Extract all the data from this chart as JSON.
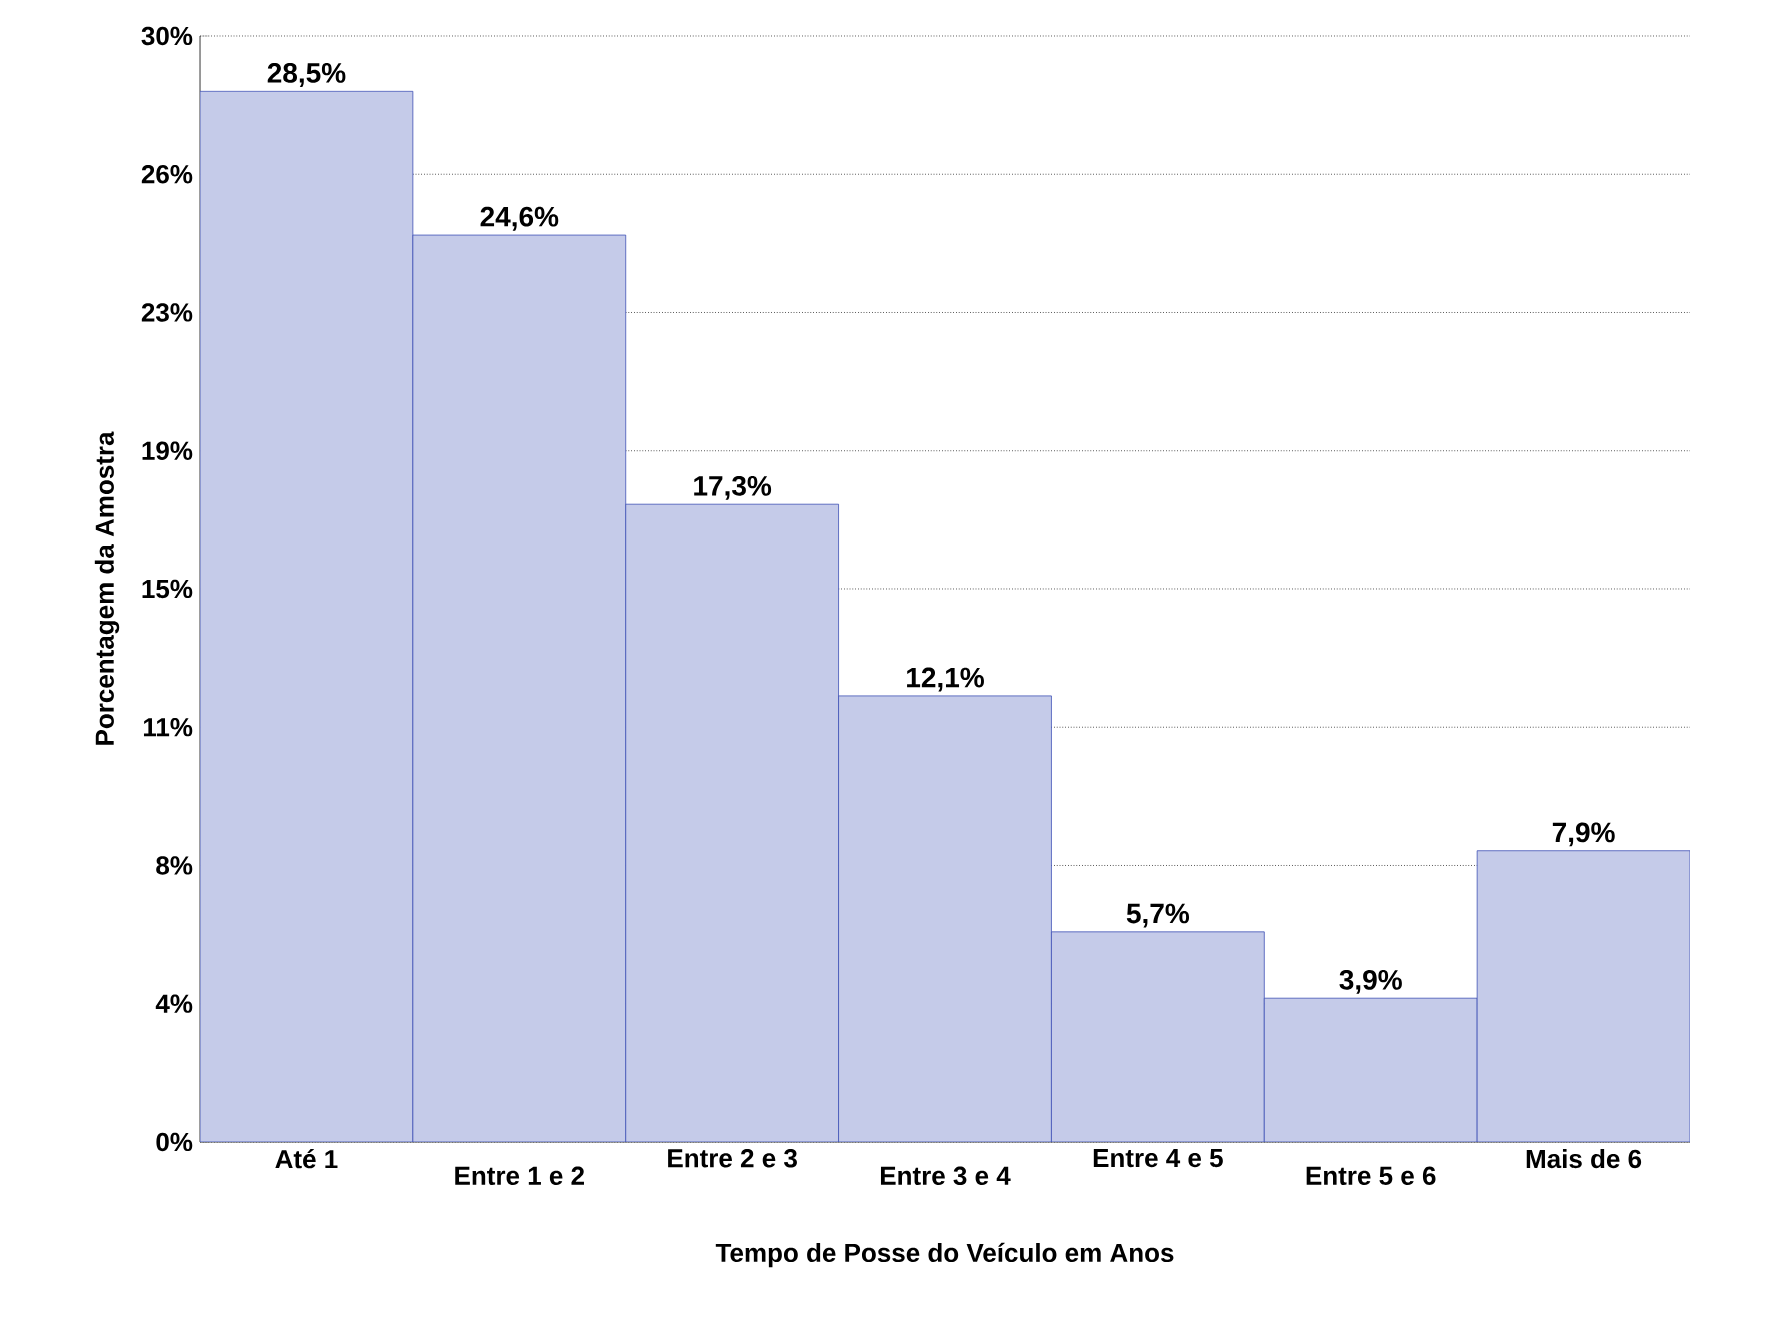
{
  "chart_data": {
    "type": "bar",
    "xlabel": "Tempo de Posse do Veículo em Anos",
    "ylabel": "Porcentagem da Amostra",
    "categories": [
      "Até 1",
      "Entre 1 e 2",
      "Entre 2 e 3",
      "Entre 3 e 4",
      "Entre 4 e 5",
      "Entre 5 e 6",
      "Mais de 6"
    ],
    "values": [
      28.5,
      24.6,
      17.3,
      12.1,
      5.7,
      3.9,
      7.9
    ],
    "value_labels": [
      "28,5%",
      "24,6%",
      "17,3%",
      "12,1%",
      "5,7%",
      "3,9%",
      "7,9%"
    ],
    "color": "#3f51b5",
    "ylim": [
      0,
      30
    ],
    "yticks": [
      {
        "value": 0,
        "label": "0%"
      },
      {
        "value": 3.75,
        "label": "4%"
      },
      {
        "value": 7.5,
        "label": "8%"
      },
      {
        "value": 11.25,
        "label": "11%"
      },
      {
        "value": 15,
        "label": "15%"
      },
      {
        "value": 18.75,
        "label": "19%"
      },
      {
        "value": 22.5,
        "label": "23%"
      },
      {
        "value": 26.25,
        "label": "26%"
      },
      {
        "value": 30,
        "label": "30%"
      }
    ],
    "grid": "y"
  }
}
